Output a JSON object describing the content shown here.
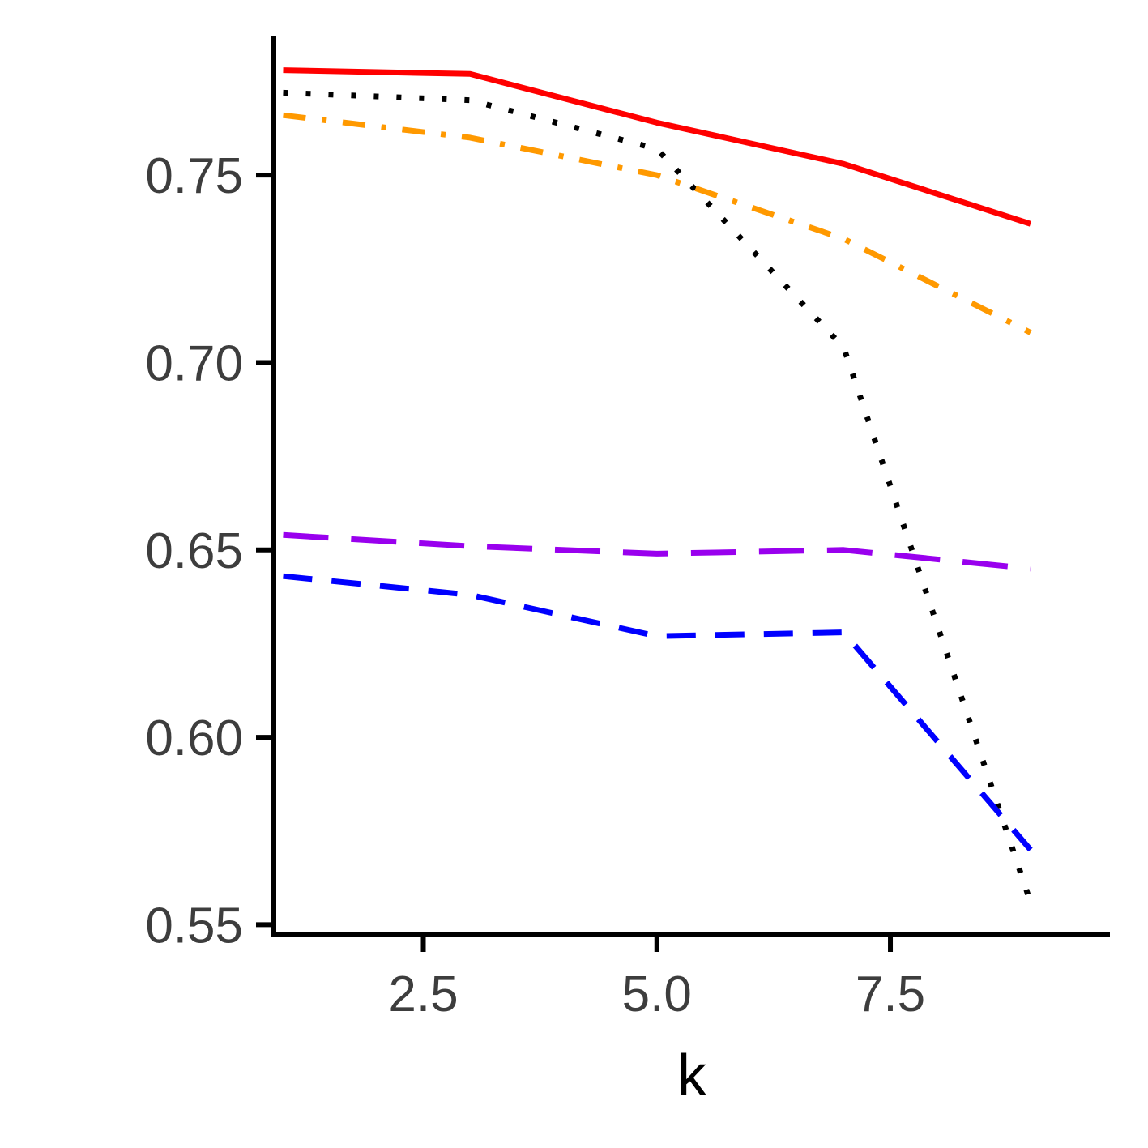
{
  "chart_data": {
    "type": "line",
    "title": "",
    "xlabel": "k",
    "ylabel": "",
    "xlim": [
      0.9,
      9.85
    ],
    "ylim": [
      0.5475,
      0.787
    ],
    "xticks": [
      2.5,
      5.0,
      7.5
    ],
    "xtick_labels": [
      "2.5",
      "5.0",
      "7.5"
    ],
    "yticks": [
      0.55,
      0.6,
      0.65,
      0.7,
      0.75
    ],
    "ytick_labels": [
      "0.55",
      "0.60",
      "0.65",
      "0.70",
      "0.75"
    ],
    "grid": false,
    "legend": "none",
    "x": [
      1,
      3,
      5,
      7,
      9
    ],
    "series": [
      {
        "values": [
          0.778,
          0.777,
          0.764,
          0.753,
          0.737
        ],
        "color": "#ff0000",
        "dash": "solid"
      },
      {
        "values": [
          0.772,
          0.77,
          0.757,
          0.704,
          0.556
        ],
        "color": "#000000",
        "dash": "dotted"
      },
      {
        "values": [
          0.766,
          0.76,
          0.75,
          0.733,
          0.708
        ],
        "color": "#ff9900",
        "dash": "dashdot"
      },
      {
        "values": [
          0.654,
          0.651,
          0.649,
          0.65,
          0.645
        ],
        "color": "#9900ee",
        "dash": "longdash"
      },
      {
        "values": [
          0.643,
          0.638,
          0.627,
          0.628,
          0.57
        ],
        "color": "#0000ff",
        "dash": "dashed"
      }
    ]
  }
}
